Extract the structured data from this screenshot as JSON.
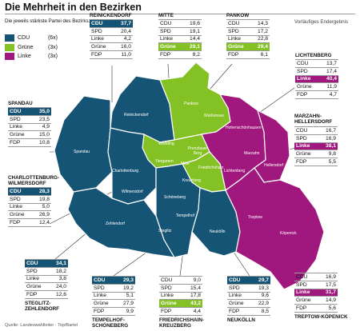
{
  "title": "Die Mehrheit in den Bezirken",
  "subtitle": "Die jeweils stärkste Partei des Bezirks:",
  "note": "Vorläufiges Endergebnis",
  "source": "Quelle: Landeswahlleiter · Tsp/Bartel",
  "colors": {
    "CDU": "#165476",
    "Grüne": "#83c124",
    "Linke": "#a0177d"
  },
  "legend": [
    {
      "party": "CDU",
      "count": "(6x)"
    },
    {
      "party": "Grüne",
      "count": "(3x)"
    },
    {
      "party": "Linke",
      "count": "(3x)"
    }
  ],
  "parties": [
    "CDU",
    "SPD",
    "Linke",
    "Grüne",
    "FDP"
  ],
  "districts": [
    {
      "name": "REINICKENDORF",
      "winner": "CDU",
      "values": [
        "37,7",
        "20,4",
        "4,2",
        "16,0",
        "11,0"
      ]
    },
    {
      "name": "MITTE",
      "winner": "Grüne",
      "values": [
        "19,6",
        "19,1",
        "14,4",
        "29,1",
        "8,2"
      ]
    },
    {
      "name": "PANKOW",
      "winner": "Grüne",
      "values": [
        "14,3",
        "17,2",
        "22,8",
        "29,4",
        "6,1"
      ]
    },
    {
      "name": "LICHTENBERG",
      "winner": "Linke",
      "values": [
        "13,7",
        "17,4",
        "40,4",
        "11,9",
        "4,7"
      ]
    },
    {
      "name": "MARZAHN-HELLERSDORF",
      "winner": "Linke",
      "values": [
        "16,7",
        "16,9",
        "38,1",
        "9,8",
        "5,5"
      ]
    },
    {
      "name": "SPANDAU",
      "winner": "CDU",
      "values": [
        "35,0",
        "23,5",
        "4,9",
        "15,0",
        "10,8"
      ]
    },
    {
      "name": "CHARLOTTENBURG-WILMERSDORF",
      "winner": "CDU",
      "values": [
        "28,3",
        "19,8",
        "5,0",
        "26,9",
        "12,4"
      ]
    },
    {
      "name": "STEGLITZ-ZEHLENDORF",
      "winner": "CDU",
      "values": [
        "34,1",
        "18,2",
        "3,8",
        "24,0",
        "12,6"
      ]
    },
    {
      "name": "TEMPELHOF-SCHÖNEBERG",
      "winner": "CDU",
      "values": [
        "29,3",
        "19,2",
        "5,1",
        "27,9",
        "9,9"
      ]
    },
    {
      "name": "FRIEDRICHSHAIN-KREUZBERG",
      "winner": "Grüne",
      "values": [
        "9,0",
        "15,4",
        "17,8",
        "43,2",
        "4,4"
      ]
    },
    {
      "name": "NEUKÖLLN",
      "winner": "CDU",
      "values": [
        "29,7",
        "19,3",
        "9,6",
        "22,9",
        "8,5"
      ]
    },
    {
      "name": "TREPTOW-KÖPENICK",
      "winner": "Linke",
      "values": [
        "16,9",
        "17,5",
        "31,7",
        "14,9",
        "5,6"
      ]
    }
  ],
  "map_labels": [
    "Reinickendorf",
    "Pankow",
    "Weißensee",
    "Hohenschönhausen",
    "Spandau",
    "Charlottenburg",
    "Wedding",
    "Prenzlauer Berg",
    "Tiergarten",
    "Mitte",
    "Friedrichshain",
    "Kreuzberg",
    "Lichtenberg",
    "Marzahn",
    "Hellersdorf",
    "Wilmersdorf",
    "Schöneberg",
    "Tempelhof",
    "Zehlendorf",
    "Steglitz",
    "Neukölln",
    "Treptow",
    "Köpenick"
  ]
}
